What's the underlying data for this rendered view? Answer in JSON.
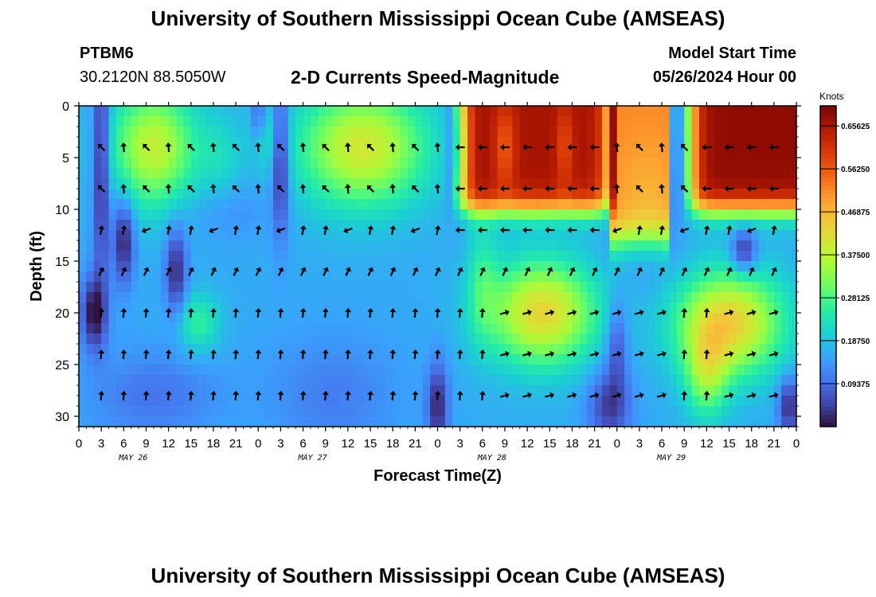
{
  "header": {
    "title": "University of Southern Mississippi Ocean Cube (AMSEAS)",
    "station": "PTBM6",
    "coords": "30.2120N  88.5050W",
    "subtitle": "2-D Currents Speed-Magnitude",
    "model_start_label": "Model Start Time",
    "model_start_value": "05/26/2024 Hour 00"
  },
  "footer": {
    "title": "University of Southern Mississippi Ocean Cube (AMSEAS)"
  },
  "chart_data": {
    "type": "heatmap",
    "title": "2-D Currents Speed-Magnitude",
    "xlabel": "Forecast Time(Z)",
    "ylabel": "Depth (ft)",
    "x_ticks": [
      "0",
      "3",
      "6",
      "9",
      "12",
      "15",
      "18",
      "21",
      "0",
      "3",
      "6",
      "9",
      "12",
      "15",
      "18",
      "21",
      "0",
      "3",
      "6",
      "9",
      "12",
      "15",
      "18",
      "21",
      "0",
      "3",
      "6",
      "9",
      "12",
      "15",
      "18",
      "21",
      "0"
    ],
    "day_labels": [
      "MAY 26",
      "MAY 27",
      "MAY 28",
      "MAY 29"
    ],
    "y_ticks": [
      0,
      5,
      10,
      15,
      20,
      25,
      30
    ],
    "ylim": [
      0,
      31
    ],
    "xlim_hours": [
      0,
      96
    ],
    "colorbar": {
      "unit": "Knots",
      "min": 0,
      "max": 0.7,
      "ticks": [
        "0.65625",
        "0.56250",
        "0.46875",
        "0.37500",
        "0.28125",
        "0.18750",
        "0.09375"
      ],
      "tick_values": [
        0.65625,
        0.5625,
        0.46875,
        0.375,
        0.28125,
        0.1875,
        0.09375
      ]
    },
    "arrow_depths_ft": [
      4,
      8,
      12,
      16,
      20,
      24,
      28
    ],
    "arrow_hours": [
      3,
      6,
      9,
      12,
      15,
      18,
      21,
      24,
      27,
      30,
      33,
      36,
      39,
      42,
      45,
      48,
      51,
      54,
      57,
      60,
      63,
      66,
      69,
      72,
      75,
      78,
      81,
      84,
      87,
      90,
      93
    ],
    "speed_description": "Strong currents (>0.6 kn) between May 28 12Z-May 29 00Z at 0-10 ft and May 29 09Z-May 30 00Z at 0-10 ft; moderate (~0.35-0.45 kn) May 26 06Z-15Z and May 27 06Z-18Z near surface, and May 28 06Z-21Z / May 29 09Z-18Z at 15-28 ft."
  },
  "colors": {
    "scale": [
      "#30123b",
      "#4145ab",
      "#4675ed",
      "#39a2fc",
      "#1bcfd4",
      "#24eca6",
      "#61fc6c",
      "#a4fc3b",
      "#d1e834",
      "#f3c63a",
      "#fe9b2d",
      "#f36315",
      "#d93806",
      "#b11901",
      "#7a0402"
    ]
  }
}
